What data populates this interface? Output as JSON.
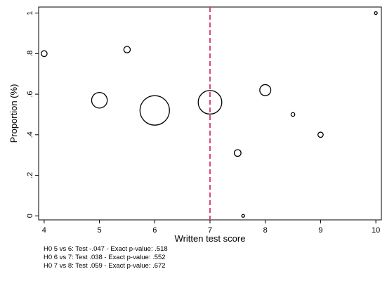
{
  "chart_data": {
    "type": "scatter",
    "title": "",
    "xlabel": "Written test score",
    "ylabel": "Proportion (%)",
    "xlim": [
      3.9,
      10.1
    ],
    "ylim": [
      -0.02,
      1.03
    ],
    "x_ticks": [
      4,
      5,
      6,
      7,
      8,
      9,
      10
    ],
    "y_ticks": [
      0,
      0.2,
      0.4,
      0.6,
      0.8,
      1
    ],
    "x_tick_labels": [
      "4",
      "5",
      "6",
      "7",
      "8",
      "9",
      "10"
    ],
    "y_tick_labels": [
      "0",
      ".2",
      ".4",
      ".6",
      ".8",
      "1"
    ],
    "grid": false,
    "legend": "none",
    "marker": "hollow circle, area proportional to weight",
    "reference_line": {
      "axis": "x",
      "value": 7,
      "style": "dashed",
      "color": "#d6336c"
    },
    "points": [
      {
        "x": 4.0,
        "y": 0.8,
        "weight": 1
      },
      {
        "x": 5.0,
        "y": 0.57,
        "weight": 7
      },
      {
        "x": 5.5,
        "y": 0.82,
        "weight": 1.2
      },
      {
        "x": 6.0,
        "y": 0.52,
        "weight": 25
      },
      {
        "x": 7.0,
        "y": 0.56,
        "weight": 16
      },
      {
        "x": 7.5,
        "y": 0.31,
        "weight": 1.3
      },
      {
        "x": 7.6,
        "y": 0.0,
        "weight": 0.2
      },
      {
        "x": 8.0,
        "y": 0.62,
        "weight": 3.5
      },
      {
        "x": 8.5,
        "y": 0.5,
        "weight": 0.4
      },
      {
        "x": 9.0,
        "y": 0.4,
        "weight": 0.8
      },
      {
        "x": 10.0,
        "y": 1.0,
        "weight": 0.2
      }
    ]
  },
  "notes": [
    "H0 5 vs 6: Test -.047 - Exact p-value: .518",
    "H0 6 vs 7: Test .038 - Exact p-value: .552",
    "H0 7 vs 8: Test .059 - Exact p-value: .672"
  ]
}
